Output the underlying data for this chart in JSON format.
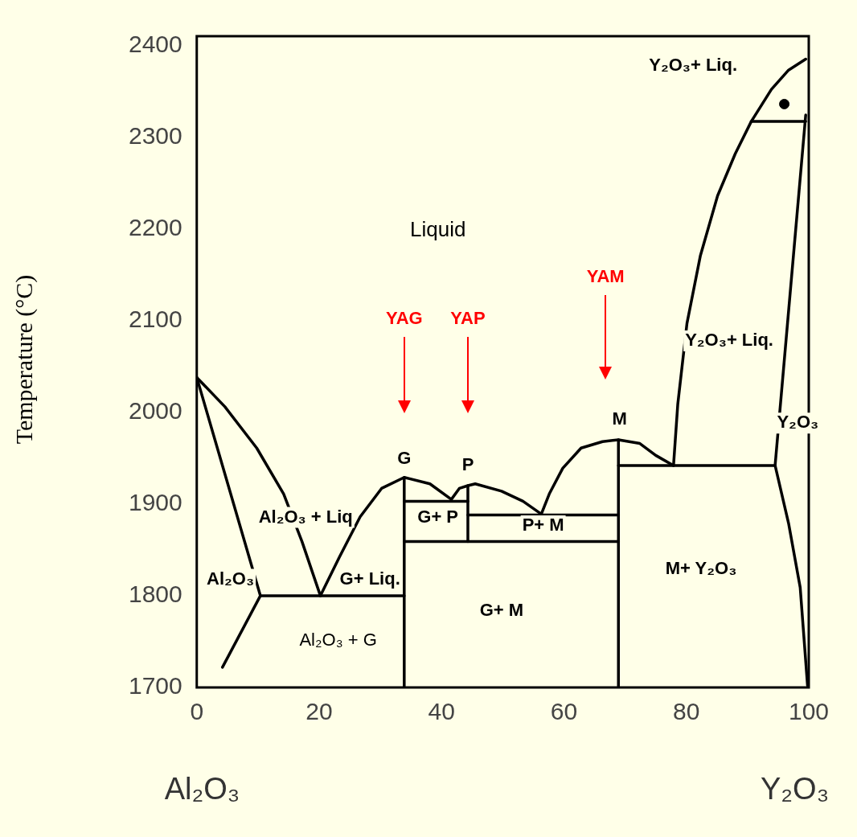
{
  "chart_data": {
    "type": "line",
    "ylabel": "Temperature (°C)",
    "xlim": [
      0,
      100
    ],
    "xticks": [
      0,
      20,
      40,
      60,
      80,
      100
    ],
    "ylim": [
      1700,
      2410
    ],
    "yticks": [
      1700,
      1800,
      1900,
      2000,
      2100,
      2200,
      2300,
      2400
    ],
    "marker": "none",
    "line_style": "solid",
    "annotations": [
      "Liquid",
      "YAG",
      "YAP",
      "YAM",
      "G",
      "P",
      "M",
      "Al₂O₃ + Liq",
      "Al₂O₃",
      "G+ Liq.",
      "Al₂O₃ + G",
      "G+ P",
      "P+ M",
      "G+ M",
      "M+ Y₂O₃",
      "Y₂O₃+ Liq.",
      "Y₂O₃",
      "Y₂O₃+ Liq.",
      "Al₂O₃",
      "Y₂O₃"
    ],
    "series": [
      {
        "color": "#000000",
        "x": [
          0,
          4.6,
          9.8,
          14.2,
          17.2,
          20.2
        ],
        "values": [
          2038,
          2006,
          1961,
          1911,
          1859,
          1800
        ]
      },
      {
        "color": "#000000",
        "x": [
          0,
          10.4,
          4.2
        ],
        "values": [
          2038,
          1800,
          1722
        ]
      },
      {
        "color": "#000000",
        "x": [
          10.4,
          33.9
        ],
        "values": [
          1800,
          1800
        ]
      },
      {
        "color": "#000000",
        "x": [
          20.2,
          23.3,
          26.7,
          30.2,
          33.9,
          38.1,
          41.6,
          42.9,
          44.3,
          45.5,
          49.8,
          53.3,
          56.3,
          57.6,
          59.8,
          62.8,
          66.3,
          68.9,
          72.4,
          75,
          77.9
        ],
        "values": [
          1800,
          1842,
          1886,
          1917,
          1929,
          1922,
          1905,
          1917,
          1920,
          1922,
          1914,
          1903,
          1889,
          1911,
          1939,
          1961,
          1968,
          1970,
          1966,
          1953,
          1942
        ]
      },
      {
        "color": "#000000",
        "x": [
          33.9,
          33.9
        ],
        "values": [
          1700,
          1929
        ]
      },
      {
        "color": "#000000",
        "x": [
          33.9,
          44.3
        ],
        "values": [
          1903,
          1903
        ]
      },
      {
        "color": "#000000",
        "x": [
          44.3,
          44.3
        ],
        "values": [
          1859,
          1920
        ]
      },
      {
        "color": "#000000",
        "x": [
          44.3,
          68.9
        ],
        "values": [
          1888,
          1888
        ]
      },
      {
        "color": "#000000",
        "x": [
          33.9,
          68.9
        ],
        "values": [
          1859,
          1859
        ]
      },
      {
        "color": "#000000",
        "x": [
          68.9,
          68.9
        ],
        "values": [
          1700,
          1970
        ]
      },
      {
        "color": "#000000",
        "x": [
          68.9,
          94.5
        ],
        "values": [
          1942,
          1942
        ]
      },
      {
        "color": "#000000",
        "x": [
          77.9,
          78.6,
          80.1,
          82.3,
          85.1,
          88,
          90.6,
          93.9,
          96.7,
          99.5
        ],
        "values": [
          1942,
          2009,
          2097,
          2171,
          2236,
          2282,
          2317,
          2352,
          2373,
          2385
        ]
      },
      {
        "color": "#000000",
        "x": [
          90.6,
          99.5
        ],
        "values": [
          2317,
          2317
        ]
      },
      {
        "color": "#000000",
        "x": [
          99.5,
          94.5,
          96.7,
          98.6,
          99.8
        ],
        "values": [
          2324,
          1942,
          1879,
          1809,
          1702
        ]
      },
      {
        "type": "scatter",
        "marker": "circle",
        "color": "#000000",
        "x": [
          96
        ],
        "values": [
          2336
        ]
      }
    ]
  }
}
